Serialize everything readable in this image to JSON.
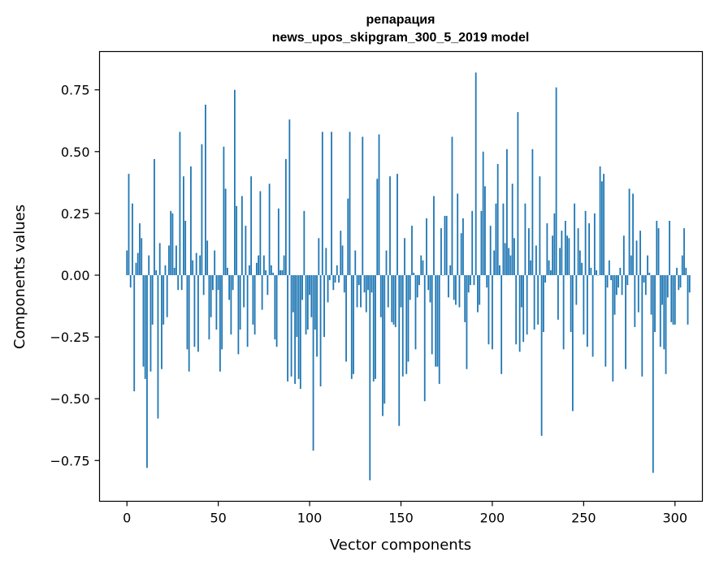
{
  "chart_data": {
    "type": "bar",
    "title": "репарация",
    "subtitle": "news_upos_skipgram_300_5_2019 model",
    "xlabel": "Vector components",
    "ylabel": "Components values",
    "xlim": [
      -15,
      315
    ],
    "ylim": [
      -0.915,
      0.905
    ],
    "grid": false,
    "bar_color": "#1f77b4",
    "x_ticks": [
      0,
      50,
      100,
      150,
      200,
      250,
      300
    ],
    "x_tick_labels": [
      "0",
      "50",
      "100",
      "150",
      "200",
      "250",
      "300"
    ],
    "y_ticks": [
      -0.75,
      -0.5,
      -0.25,
      0.0,
      0.25,
      0.5,
      0.75
    ],
    "y_tick_labels": [
      "−0.75",
      "−0.50",
      "−0.25",
      "0.00",
      "0.25",
      "0.50",
      "0.75"
    ],
    "values": [
      0.1,
      0.41,
      -0.05,
      0.29,
      -0.47,
      0.05,
      0.09,
      0.21,
      0.15,
      -0.37,
      -0.42,
      -0.78,
      0.08,
      -0.39,
      -0.2,
      0.47,
      0.02,
      -0.58,
      0.13,
      -0.38,
      -0.2,
      0.04,
      -0.17,
      0.12,
      0.26,
      0.25,
      0.03,
      0.12,
      -0.06,
      0.58,
      -0.06,
      0.4,
      0.22,
      -0.3,
      -0.39,
      0.44,
      0.06,
      -0.29,
      0.09,
      -0.31,
      0.08,
      0.53,
      -0.08,
      0.69,
      0.14,
      -0.26,
      -0.17,
      -0.06,
      0.1,
      -0.22,
      -0.06,
      -0.39,
      -0.3,
      0.52,
      0.35,
      0.03,
      -0.1,
      -0.24,
      -0.06,
      0.75,
      0.28,
      -0.32,
      -0.22,
      0.32,
      -0.13,
      0.2,
      -0.29,
      0.04,
      0.4,
      -0.2,
      -0.24,
      0.05,
      0.08,
      0.34,
      -0.14,
      0.08,
      0.02,
      -0.08,
      0.37,
      0.04,
      0.01,
      -0.26,
      -0.29,
      0.27,
      0.02,
      0.02,
      0.08,
      0.47,
      -0.43,
      0.63,
      -0.41,
      -0.15,
      -0.44,
      -0.25,
      -0.42,
      -0.46,
      -0.1,
      0.26,
      -0.24,
      -0.22,
      -0.08,
      -0.17,
      -0.71,
      -0.22,
      -0.33,
      0.15,
      -0.45,
      0.58,
      -0.25,
      0.11,
      -0.11,
      -0.02,
      0.58,
      -0.06,
      -0.03,
      0.04,
      -0.03,
      0.18,
      0.12,
      -0.07,
      -0.35,
      0.31,
      0.58,
      -0.42,
      -0.4,
      0.1,
      -0.13,
      -0.04,
      -0.13,
      0.56,
      -0.07,
      -0.15,
      -0.06,
      -0.83,
      -0.07,
      -0.43,
      -0.42,
      0.39,
      0.57,
      -0.17,
      -0.57,
      -0.52,
      0.1,
      -0.13,
      0.4,
      -0.19,
      -0.2,
      -0.21,
      0.41,
      -0.61,
      -0.13,
      -0.41,
      0.15,
      -0.4,
      -0.35,
      -0.1,
      0.2,
      0.01,
      -0.3,
      -0.09,
      -0.04,
      0.08,
      0.06,
      -0.51,
      0.23,
      -0.06,
      -0.11,
      -0.32,
      0.32,
      -0.37,
      -0.37,
      -0.44,
      0.19,
      0.0,
      0.24,
      0.24,
      -0.09,
      0.04,
      0.56,
      -0.1,
      -0.12,
      0.33,
      -0.13,
      0.17,
      0.23,
      -0.19,
      -0.38,
      -0.07,
      -0.04,
      0.26,
      -0.04,
      0.82,
      -0.15,
      -0.12,
      0.26,
      0.5,
      0.36,
      -0.05,
      -0.28,
      0.2,
      -0.3,
      0.1,
      0.29,
      0.45,
      0.04,
      -0.4,
      0.29,
      0.13,
      0.51,
      0.11,
      0.08,
      0.37,
      0.15,
      -0.28,
      0.66,
      -0.31,
      -0.13,
      -0.27,
      0.29,
      -0.24,
      0.19,
      0.06,
      0.51,
      -0.22,
      0.12,
      -0.2,
      0.4,
      -0.65,
      -0.23,
      -0.03,
      0.21,
      0.06,
      0.02,
      0.16,
      0.25,
      0.76,
      -0.18,
      0.11,
      0.18,
      -0.3,
      0.22,
      0.16,
      0.15,
      -0.23,
      -0.55,
      0.29,
      -0.12,
      0.19,
      0.1,
      0.05,
      -0.24,
      0.26,
      -0.29,
      0.21,
      0.03,
      -0.33,
      0.25,
      0.02,
      0.0,
      0.44,
      0.38,
      0.41,
      -0.37,
      -0.05,
      0.06,
      -0.02,
      -0.43,
      -0.16,
      -0.08,
      -0.05,
      0.03,
      -0.08,
      0.16,
      -0.38,
      -0.04,
      0.35,
      0.08,
      0.33,
      -0.21,
      0.14,
      -0.15,
      0.18,
      -0.41,
      -0.03,
      -0.08,
      0.08,
      0.01,
      -0.16,
      -0.8,
      -0.23,
      0.22,
      0.19,
      -0.29,
      -0.12,
      -0.3,
      -0.4,
      -0.09,
      0.22,
      -0.19,
      -0.2,
      -0.2,
      0.03,
      -0.06,
      -0.05,
      0.08,
      0.19,
      0.03,
      -0.2,
      -0.07
    ]
  }
}
